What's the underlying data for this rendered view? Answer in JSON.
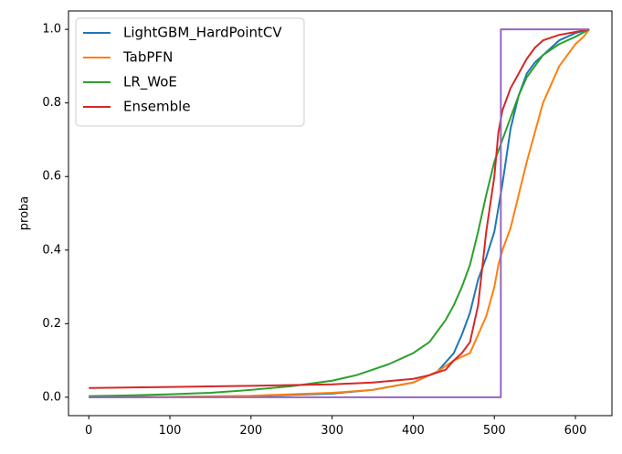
{
  "chart_data": {
    "type": "line",
    "title": "",
    "xlabel": "",
    "ylabel": "proba",
    "xlim": [
      -25,
      645
    ],
    "ylim": [
      -0.05,
      1.05
    ],
    "xticks": [
      0,
      100,
      200,
      300,
      400,
      500,
      600
    ],
    "yticks": [
      0.0,
      0.2,
      0.4,
      0.6,
      0.8,
      1.0
    ],
    "xtick_labels": [
      "0",
      "100",
      "200",
      "300",
      "400",
      "500",
      "600"
    ],
    "ytick_labels": [
      "0.0",
      "0.2",
      "0.4",
      "0.6",
      "0.8",
      "1.0"
    ],
    "grid": false,
    "legend_position": "top-left",
    "series": [
      {
        "name": "LightGBM_HardPointCV",
        "color": "#1f77b4",
        "in_legend": true,
        "points": [
          [
            0,
            0.0
          ],
          [
            100,
            0.001
          ],
          [
            200,
            0.003
          ],
          [
            300,
            0.01
          ],
          [
            350,
            0.02
          ],
          [
            400,
            0.04
          ],
          [
            430,
            0.07
          ],
          [
            450,
            0.12
          ],
          [
            460,
            0.17
          ],
          [
            470,
            0.23
          ],
          [
            480,
            0.32
          ],
          [
            490,
            0.38
          ],
          [
            500,
            0.45
          ],
          [
            510,
            0.58
          ],
          [
            520,
            0.73
          ],
          [
            530,
            0.82
          ],
          [
            540,
            0.88
          ],
          [
            550,
            0.91
          ],
          [
            560,
            0.93
          ],
          [
            570,
            0.95
          ],
          [
            580,
            0.97
          ],
          [
            600,
            0.99
          ],
          [
            617,
            1.0
          ]
        ]
      },
      {
        "name": "TabPFN",
        "color": "#ff7f0e",
        "in_legend": true,
        "points": [
          [
            0,
            0.0
          ],
          [
            100,
            0.001
          ],
          [
            200,
            0.004
          ],
          [
            300,
            0.012
          ],
          [
            350,
            0.02
          ],
          [
            400,
            0.04
          ],
          [
            430,
            0.07
          ],
          [
            450,
            0.1
          ],
          [
            470,
            0.12
          ],
          [
            490,
            0.22
          ],
          [
            500,
            0.3
          ],
          [
            505,
            0.36
          ],
          [
            510,
            0.4
          ],
          [
            520,
            0.46
          ],
          [
            530,
            0.55
          ],
          [
            540,
            0.64
          ],
          [
            550,
            0.72
          ],
          [
            560,
            0.8
          ],
          [
            570,
            0.85
          ],
          [
            580,
            0.9
          ],
          [
            590,
            0.93
          ],
          [
            600,
            0.96
          ],
          [
            610,
            0.98
          ],
          [
            617,
            1.0
          ]
        ]
      },
      {
        "name": "LR_WoE",
        "color": "#2ca02c",
        "in_legend": true,
        "points": [
          [
            0,
            0.003
          ],
          [
            50,
            0.005
          ],
          [
            100,
            0.008
          ],
          [
            150,
            0.012
          ],
          [
            200,
            0.02
          ],
          [
            250,
            0.03
          ],
          [
            300,
            0.045
          ],
          [
            330,
            0.06
          ],
          [
            350,
            0.075
          ],
          [
            370,
            0.09
          ],
          [
            400,
            0.12
          ],
          [
            420,
            0.15
          ],
          [
            430,
            0.18
          ],
          [
            440,
            0.21
          ],
          [
            450,
            0.25
          ],
          [
            460,
            0.3
          ],
          [
            470,
            0.36
          ],
          [
            480,
            0.45
          ],
          [
            490,
            0.55
          ],
          [
            500,
            0.64
          ],
          [
            510,
            0.7
          ],
          [
            520,
            0.76
          ],
          [
            530,
            0.82
          ],
          [
            540,
            0.87
          ],
          [
            550,
            0.9
          ],
          [
            560,
            0.93
          ],
          [
            580,
            0.96
          ],
          [
            600,
            0.98
          ],
          [
            617,
            1.0
          ]
        ]
      },
      {
        "name": "Ensemble",
        "color": "#d62728",
        "in_legend": true,
        "points": [
          [
            0,
            0.025
          ],
          [
            100,
            0.028
          ],
          [
            200,
            0.031
          ],
          [
            300,
            0.035
          ],
          [
            350,
            0.04
          ],
          [
            400,
            0.05
          ],
          [
            420,
            0.06
          ],
          [
            440,
            0.075
          ],
          [
            450,
            0.1
          ],
          [
            460,
            0.12
          ],
          [
            470,
            0.15
          ],
          [
            480,
            0.25
          ],
          [
            490,
            0.45
          ],
          [
            500,
            0.6
          ],
          [
            505,
            0.72
          ],
          [
            510,
            0.78
          ],
          [
            520,
            0.84
          ],
          [
            530,
            0.88
          ],
          [
            540,
            0.92
          ],
          [
            550,
            0.95
          ],
          [
            560,
            0.97
          ],
          [
            580,
            0.985
          ],
          [
            600,
            0.993
          ],
          [
            617,
            1.0
          ]
        ]
      },
      {
        "name": "",
        "color": "#9467bd",
        "in_legend": false,
        "points": [
          [
            0,
            0.0
          ],
          [
            508,
            0.0
          ],
          [
            508,
            1.0
          ],
          [
            617,
            1.0
          ]
        ]
      }
    ]
  }
}
